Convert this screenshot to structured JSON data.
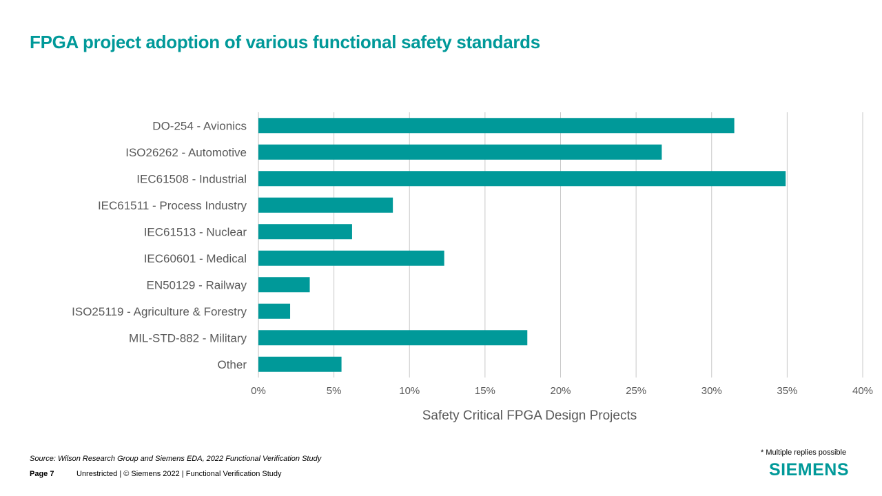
{
  "title": "FPGA project adoption of various functional safety standards",
  "chart_data": {
    "type": "bar",
    "orientation": "horizontal",
    "categories": [
      "DO-254 - Avionics",
      "ISO26262 - Automotive",
      "IEC61508 - Industrial",
      "IEC61511 - Process Industry",
      "IEC61513 - Nuclear",
      "IEC60601 - Medical",
      "EN50129 - Railway",
      "ISO25119 - Agriculture & Forestry",
      "MIL-STD-882 - Military",
      "Other"
    ],
    "values": [
      31.5,
      26.7,
      34.9,
      8.9,
      6.2,
      12.3,
      3.4,
      2.1,
      17.8,
      5.5
    ],
    "xlabel": "Safety Critical FPGA Design Projects",
    "ylabel": "",
    "xlim": [
      0,
      40
    ],
    "xticks": [
      "0%",
      "5%",
      "10%",
      "15%",
      "20%",
      "25%",
      "30%",
      "35%",
      "40%"
    ],
    "grid": true,
    "bar_color": "#009999"
  },
  "footer": {
    "source": "Source:  Wilson Research Group and Siemens EDA, 2022 Functional Verification Study",
    "page": "Page 7",
    "text": "Unrestricted | © Siemens 2022 |  Functional Verification Study",
    "note": "* Multiple replies possible",
    "logo": "SIEMENS"
  }
}
